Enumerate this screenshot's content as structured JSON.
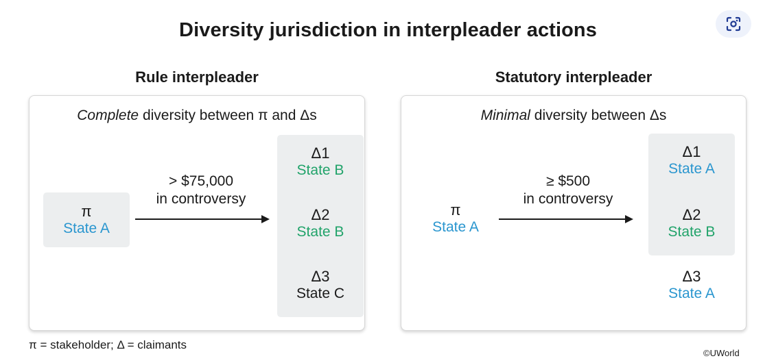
{
  "title": "Diversity jurisdiction in interpleader actions",
  "icons": {
    "lens": "lens-scan-icon"
  },
  "left": {
    "heading": "Rule interpleader",
    "subtitle_em": "Complete",
    "subtitle_rest": " diversity between π and Δs",
    "stakeholder": {
      "symbol": "π",
      "state": "State A"
    },
    "arrow_line1": "> $75,000",
    "arrow_line2": "in controversy",
    "claimants": [
      {
        "symbol": "Δ1",
        "state": "State B"
      },
      {
        "symbol": "Δ2",
        "state": "State B"
      },
      {
        "symbol": "Δ3",
        "state": "State C"
      }
    ]
  },
  "right": {
    "heading": "Statutory interpleader",
    "subtitle_em": "Minimal",
    "subtitle_rest": " diversity between Δs",
    "stakeholder": {
      "symbol": "π",
      "state": "State A"
    },
    "arrow_line1": "≥ $500",
    "arrow_line2": "in controversy",
    "claimants": [
      {
        "symbol": "Δ1",
        "state": "State A"
      },
      {
        "symbol": "Δ2",
        "state": "State B"
      },
      {
        "symbol": "Δ3",
        "state": "State A"
      }
    ]
  },
  "footnote": "π = stakeholder; Δ = claimants",
  "credit": "©UWorld",
  "colors": {
    "stateA": "#2a96cf",
    "stateB": "#21a36a",
    "stateC": "#1a1a1a",
    "box": "#eceeef"
  }
}
